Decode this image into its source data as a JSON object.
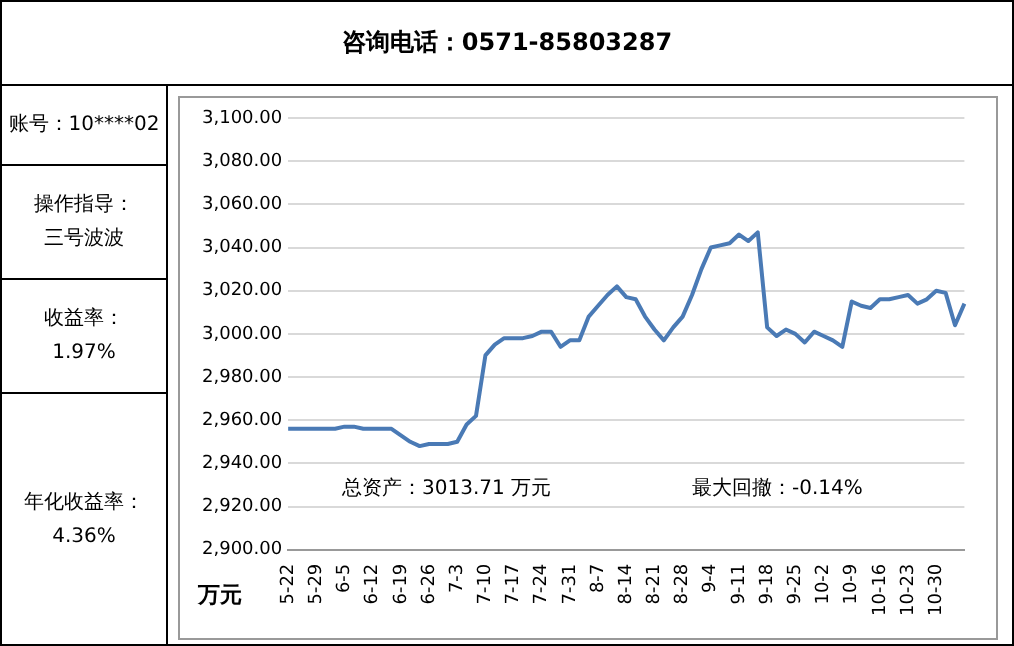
{
  "chart_data": {
    "type": "line",
    "annotations": [
      "咨询电话：0571-85803287",
      "账号：10****02",
      "操作指导：",
      "三号波波",
      "收益率：",
      "1.97%",
      "年化收益率：",
      "4.36%",
      "总资产：3013.71 万元",
      "最大回撤：-0.14%"
    ],
    "ylabel": "万元",
    "categories": [
      "5-22",
      null,
      null,
      "5-29",
      null,
      null,
      "6-5",
      null,
      null,
      "6-12",
      null,
      null,
      "6-19",
      null,
      null,
      "6-26",
      null,
      null,
      "7-3",
      null,
      null,
      "7-10",
      null,
      null,
      "7-17",
      null,
      null,
      "7-24",
      null,
      null,
      "7-31",
      null,
      null,
      "8-7",
      null,
      null,
      "8-14",
      null,
      null,
      "8-21",
      null,
      null,
      "8-28",
      null,
      null,
      "9-4",
      null,
      null,
      "9-11",
      null,
      null,
      "9-18",
      null,
      null,
      "9-25",
      null,
      null,
      "10-2",
      null,
      null,
      "10-9",
      null,
      null,
      "10-16",
      null,
      null,
      "10-23",
      null,
      null,
      "10-30",
      null,
      null,
      null
    ],
    "series": [
      {
        "color": "#4a7ab5",
        "values": [
          2956,
          2956,
          2956,
          2956,
          2956,
          2956,
          2957,
          2957,
          2956,
          2956,
          2956,
          2956,
          2953,
          2950,
          2948,
          2949,
          2949,
          2949,
          2950,
          2958,
          2962,
          2990,
          2995,
          2998,
          2998,
          2998,
          2999,
          3001,
          3001,
          2994,
          2997,
          2997,
          3008,
          3013,
          3018,
          3022,
          3017,
          3016,
          3008,
          3002,
          2997,
          3003,
          3008,
          3018,
          3030,
          3040,
          3041,
          3042,
          3046,
          3043,
          3047,
          3003,
          2999,
          3002,
          3000,
          2996,
          3001,
          2999,
          2997,
          2994,
          3015,
          3013,
          3012,
          3016,
          3016,
          3017,
          3018,
          3014,
          3016,
          3020,
          3019,
          3004,
          3014
        ]
      }
    ],
    "ylim": [
      2900,
      3100
    ],
    "yticks": [
      {
        "value": 2900,
        "label": "2,900.00"
      },
      {
        "value": 2920,
        "label": "2,920.00"
      },
      {
        "value": 2940,
        "label": "2,940.00"
      },
      {
        "value": 2960,
        "label": "2,960.00"
      },
      {
        "value": 2980,
        "label": "2,980.00"
      },
      {
        "value": 3000,
        "label": "3,000.00"
      },
      {
        "value": 3020,
        "label": "3,020.00"
      },
      {
        "value": 3040,
        "label": "3,040.00"
      },
      {
        "value": 3060,
        "label": "3,060.00"
      },
      {
        "value": 3080,
        "label": "3,080.00"
      },
      {
        "value": 3100,
        "label": "3,100.00"
      }
    ],
    "grid": "y",
    "marker": "none",
    "line_style": "solid"
  }
}
